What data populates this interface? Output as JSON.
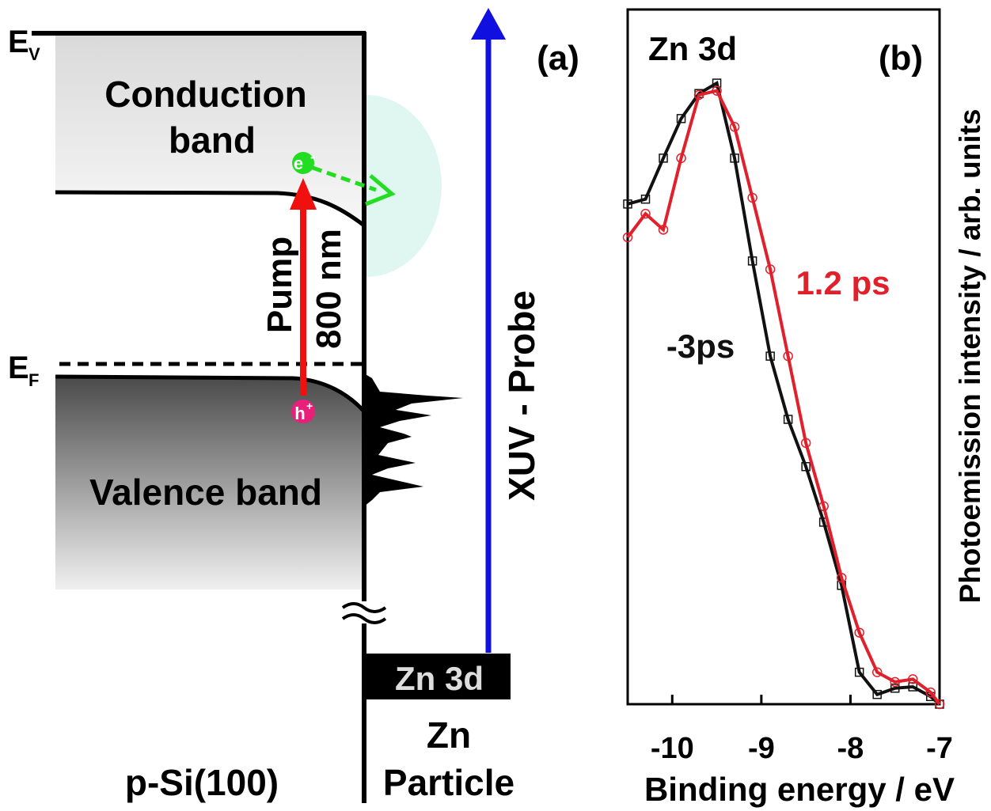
{
  "diagram": {
    "ev_main": "E",
    "ev_sub": "V",
    "ef_main": "E",
    "ef_sub": "F",
    "conduction_line1": "Conduction",
    "conduction_line2": "band",
    "valence": "Valence band",
    "pump": "Pump",
    "wavelength": "800 nm",
    "electron": "e",
    "electron_sup": "-",
    "hole": "h",
    "hole_sup": "+",
    "probe": "XUV - Probe",
    "panel_label": "(a)",
    "zn_level": "Zn 3d",
    "particle_line1": "Zn",
    "particle_line2": "Particle",
    "substrate": "p-Si(100)"
  },
  "chart_data": {
    "type": "line",
    "title": "Zn 3d",
    "panel_label": "(b)",
    "x_label": "Binding energy / eV",
    "y_label": "Photoemission intensity / arb. units",
    "xlim": [
      -10.5,
      -7
    ],
    "xticks": [
      -10,
      -9,
      -8,
      -7
    ],
    "ylim": [
      0,
      1
    ],
    "x": [
      -10.5,
      -10.3,
      -10.1,
      -9.9,
      -9.7,
      -9.5,
      -9.3,
      -9.1,
      -8.9,
      -8.7,
      -8.5,
      -8.3,
      -8.1,
      -7.9,
      -7.7,
      -7.5,
      -7.3,
      -7.1,
      -7.0
    ],
    "series": [
      {
        "name": "-3ps",
        "color": "#111111",
        "marker": "square",
        "values": [
          0.72,
          0.727,
          0.786,
          0.843,
          0.879,
          0.894,
          0.786,
          0.638,
          0.501,
          0.41,
          0.342,
          0.262,
          0.171,
          0.046,
          0.014,
          0.023,
          0.025,
          0.011,
          0
        ]
      },
      {
        "name": "1.2 ps",
        "color": "#e0202a",
        "marker": "circle",
        "values": [
          0.672,
          0.706,
          0.683,
          0.786,
          0.877,
          0.883,
          0.831,
          0.729,
          0.626,
          0.501,
          0.376,
          0.285,
          0.182,
          0.103,
          0.046,
          0.032,
          0.036,
          0.017,
          0
        ]
      }
    ]
  }
}
